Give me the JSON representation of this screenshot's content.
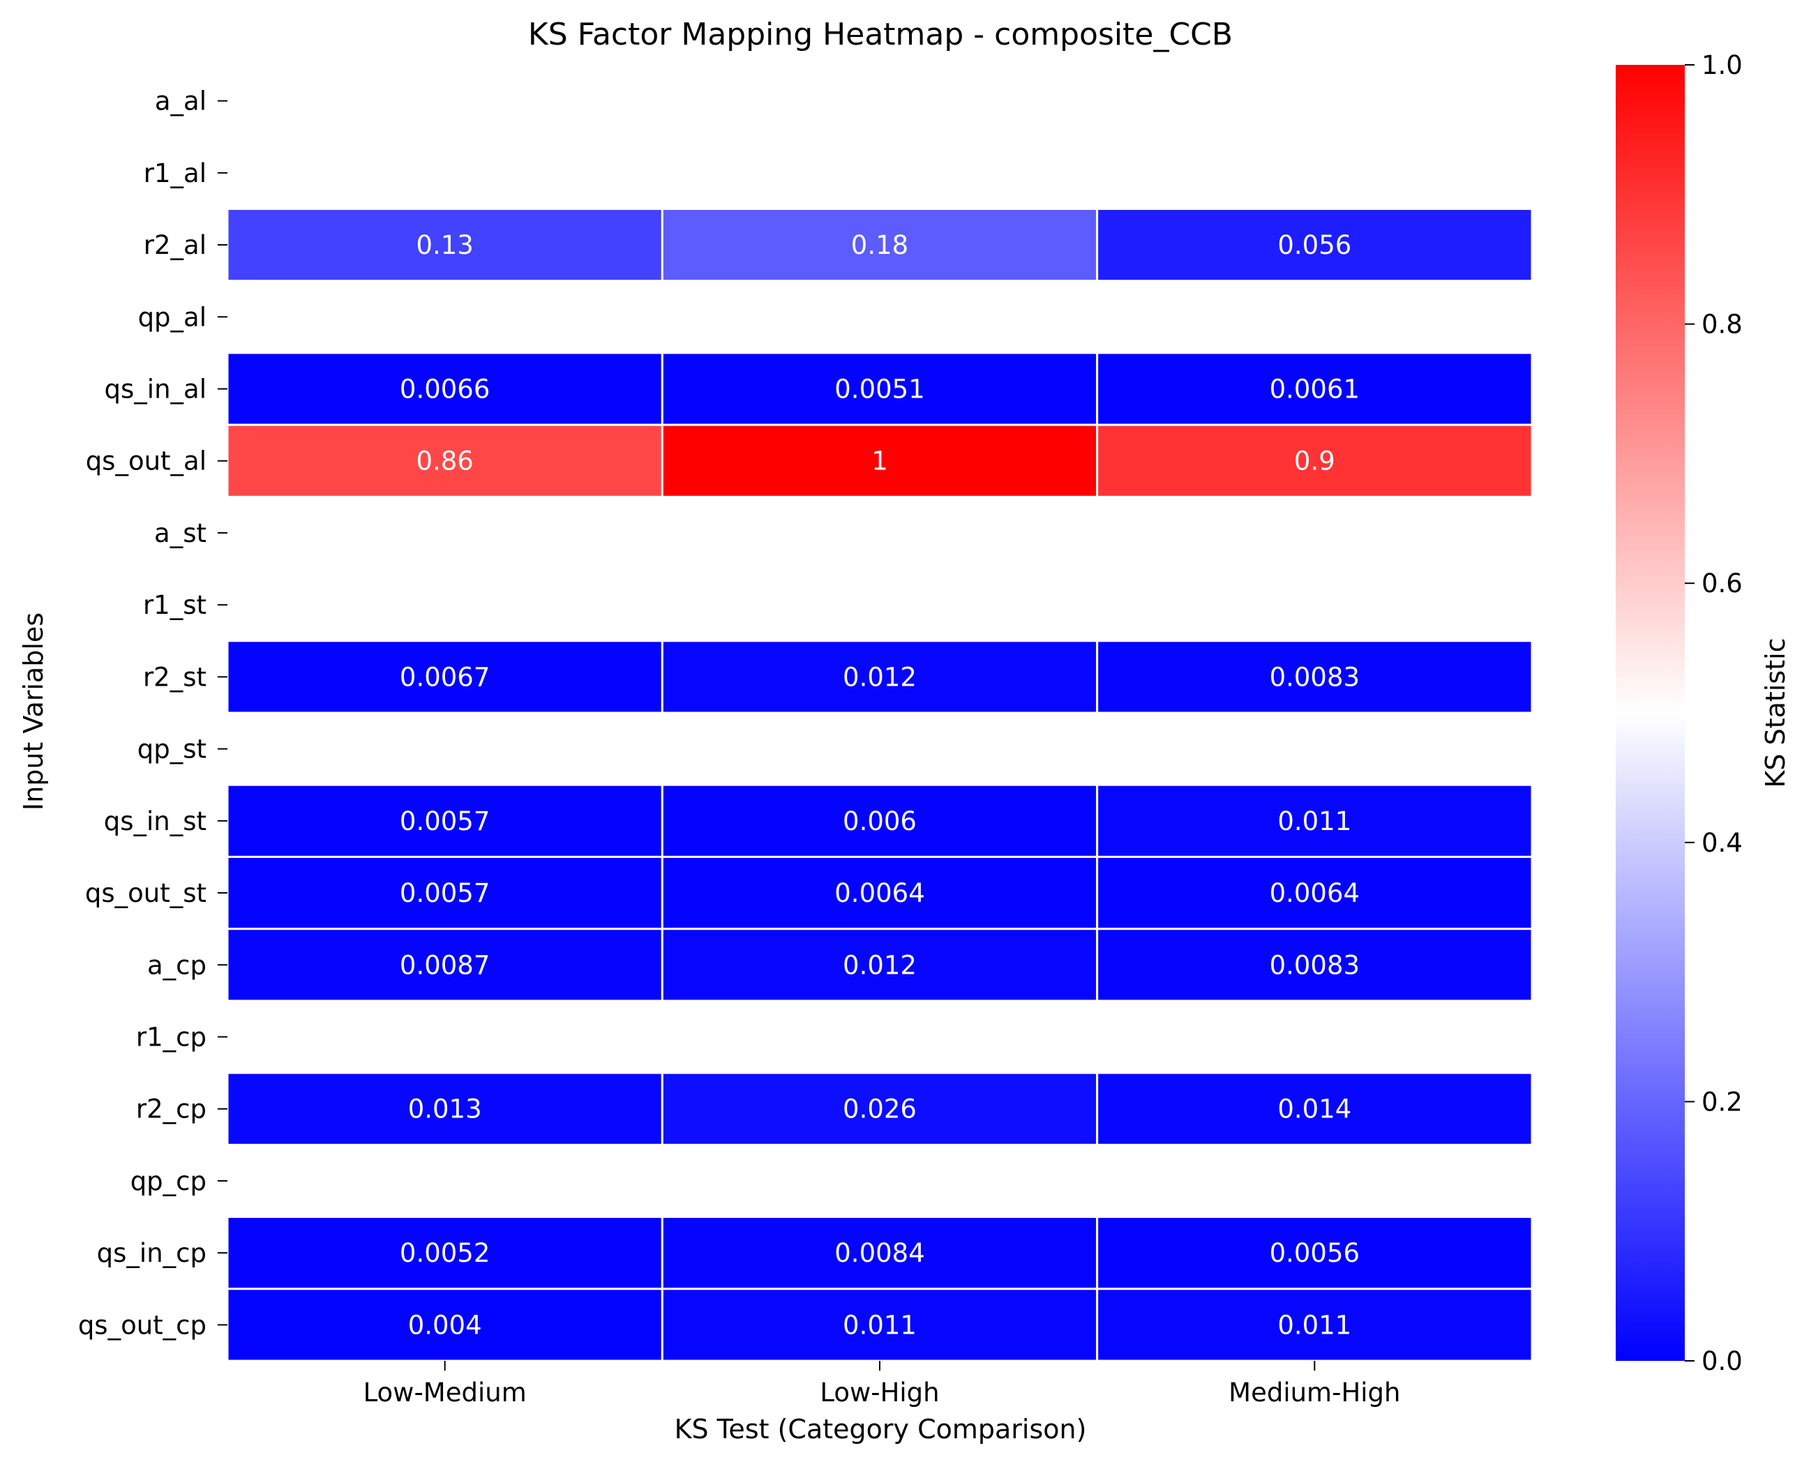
{
  "chart_data": {
    "type": "heatmap",
    "title": "KS Factor Mapping Heatmap - composite_CCB",
    "xlabel": "KS Test (Category Comparison)",
    "ylabel": "Input Variables",
    "columns": [
      "Low-Medium",
      "Low-High",
      "Medium-High"
    ],
    "rows": [
      "a_al",
      "r1_al",
      "r2_al",
      "qp_al",
      "qs_in_al",
      "qs_out_al",
      "a_st",
      "r1_st",
      "r2_st",
      "qp_st",
      "qs_in_st",
      "qs_out_st",
      "a_cp",
      "r1_cp",
      "r2_cp",
      "qp_cp",
      "qs_in_cp",
      "qs_out_cp"
    ],
    "values": [
      [
        null,
        null,
        null
      ],
      [
        null,
        null,
        null
      ],
      [
        0.13,
        0.18,
        0.056
      ],
      [
        null,
        null,
        null
      ],
      [
        0.0066,
        0.0051,
        0.0061
      ],
      [
        0.86,
        1,
        0.9
      ],
      [
        null,
        null,
        null
      ],
      [
        null,
        null,
        null
      ],
      [
        0.0067,
        0.012,
        0.0083
      ],
      [
        null,
        null,
        null
      ],
      [
        0.0057,
        0.006,
        0.011
      ],
      [
        0.0057,
        0.0064,
        0.0064
      ],
      [
        0.0087,
        0.012,
        0.0083
      ],
      [
        null,
        null,
        null
      ],
      [
        0.013,
        0.026,
        0.014
      ],
      [
        null,
        null,
        null
      ],
      [
        0.0052,
        0.0084,
        0.0056
      ],
      [
        0.004,
        0.011,
        0.011
      ]
    ],
    "annotations": [
      [
        "",
        "",
        ""
      ],
      [
        "",
        "",
        ""
      ],
      [
        "0.13",
        "0.18",
        "0.056"
      ],
      [
        "",
        "",
        ""
      ],
      [
        "0.0066",
        "0.0051",
        "0.0061"
      ],
      [
        "0.86",
        "1",
        "0.9"
      ],
      [
        "",
        "",
        ""
      ],
      [
        "",
        "",
        ""
      ],
      [
        "0.0067",
        "0.012",
        "0.0083"
      ],
      [
        "",
        "",
        ""
      ],
      [
        "0.0057",
        "0.006",
        "0.011"
      ],
      [
        "0.0057",
        "0.0064",
        "0.0064"
      ],
      [
        "0.0087",
        "0.012",
        "0.0083"
      ],
      [
        "",
        "",
        ""
      ],
      [
        "0.013",
        "0.026",
        "0.014"
      ],
      [
        "",
        "",
        ""
      ],
      [
        "0.0052",
        "0.0084",
        "0.0056"
      ],
      [
        "0.004",
        "0.011",
        "0.011"
      ]
    ],
    "colorbar": {
      "label": "KS Statistic",
      "range": [
        0.0,
        1.0
      ],
      "ticks": [
        "0.0",
        "0.2",
        "0.4",
        "0.6",
        "0.8",
        "1.0"
      ],
      "colors": [
        "#0000ff",
        "#ffffff",
        "#ff0000"
      ]
    },
    "cell_separator_color": "#ffffff",
    "grid": false
  }
}
